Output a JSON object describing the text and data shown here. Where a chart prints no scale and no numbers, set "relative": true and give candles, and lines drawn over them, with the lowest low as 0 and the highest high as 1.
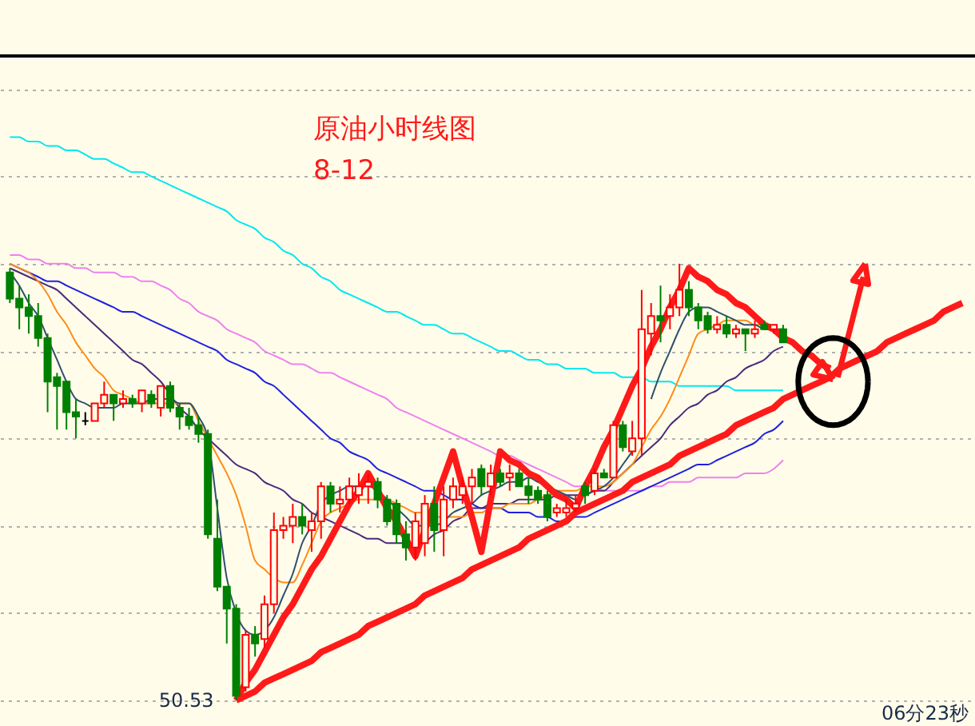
{
  "chart_data": {
    "type": "candlestick",
    "title": "原油小时线图",
    "subtitle": "8-12",
    "relative": true,
    "grid": true,
    "annotations": [
      "50.53",
      "06分23秒"
    ],
    "colors": [
      "#008000",
      "#008000",
      "#008000",
      "#008000",
      "#008000",
      "#008000",
      "#008000",
      "#008000",
      "#000000",
      "#ff0000",
      "#ff0000",
      "#008000",
      "#ff0000",
      "#008000",
      "#ff0000",
      "#008000",
      "#ff0000",
      "#008000",
      "#008000",
      "#008000",
      "#008000",
      "#008000",
      "#008000",
      "#008000",
      "#008000",
      "#ff0000",
      "#008000",
      "#ff0000",
      "#ff0000",
      "#ff0000",
      "#ff0000",
      "#008000",
      "#ff0000",
      "#ff0000",
      "#008000",
      "#ff0000",
      "#ff0000",
      "#ff0000",
      "#ff0000",
      "#008000",
      "#008000",
      "#008000",
      "#008000",
      "#ff0000",
      "#ff0000",
      "#008000",
      "#ff0000",
      "#ff0000",
      "#ff0000",
      "#ff0000",
      "#008000",
      "#ff0000",
      "#008000",
      "#ff0000",
      "#008000",
      "#008000",
      "#008000",
      "#008000",
      "#ff0000",
      "#ff0000",
      "#ff0000",
      "#008000",
      "#ff0000",
      "#008000",
      "#ff0000",
      "#008000",
      "#ff0000",
      "#ff0000",
      "#ff0000",
      "#008000",
      "#ff0000",
      "#ff0000",
      "#008000",
      "#008000",
      "#008000",
      "#ff0000",
      "#008000",
      "#ff0000",
      "#008000",
      "#ff0000",
      "#008000",
      "#ff0000",
      "#008000",
      null,
      null,
      null,
      null,
      null,
      null,
      null,
      null,
      null,
      null,
      null,
      null,
      null,
      null,
      null,
      null,
      null,
      null,
      null
    ],
    "categories": [
      null,
      null,
      null,
      null,
      null,
      null,
      null,
      null,
      null,
      null,
      null,
      null,
      null,
      null,
      null,
      null,
      null,
      null,
      null,
      null,
      null,
      null,
      null,
      null,
      null,
      null,
      null,
      null,
      null,
      null,
      null,
      null,
      null,
      null,
      null,
      null,
      null,
      null,
      null,
      null,
      null,
      null,
      null,
      null,
      null,
      null,
      null,
      null,
      null,
      null,
      null,
      null,
      null,
      null,
      null,
      null,
      null,
      null,
      null,
      null,
      null,
      null,
      null,
      null,
      null,
      null,
      null,
      null,
      null,
      null,
      null,
      null,
      null,
      null,
      null,
      null,
      null,
      null,
      null,
      null,
      null,
      null,
      null,
      null,
      null,
      null,
      null,
      null,
      null,
      null,
      null,
      null,
      null,
      null,
      null,
      null,
      null,
      null,
      null,
      null,
      null,
      null
    ],
    "ohlc": [
      [
        0.98,
        0.99,
        0.91,
        0.92
      ],
      [
        0.92,
        0.95,
        0.85,
        0.9
      ],
      [
        0.9,
        0.93,
        0.84,
        0.88
      ],
      [
        0.88,
        0.91,
        0.81,
        0.83
      ],
      [
        0.83,
        0.84,
        0.66,
        0.73
      ],
      [
        0.74,
        0.75,
        0.62,
        0.72
      ],
      [
        0.73,
        0.73,
        0.62,
        0.66
      ],
      [
        0.66,
        0.69,
        0.6,
        0.65
      ],
      [
        0.64,
        0.66,
        0.63,
        0.64
      ],
      [
        0.64,
        0.68,
        0.64,
        0.68
      ],
      [
        0.68,
        0.73,
        0.67,
        0.7
      ],
      [
        0.7,
        0.7,
        0.64,
        0.68
      ],
      [
        0.68,
        0.71,
        0.67,
        0.69
      ],
      [
        0.69,
        0.7,
        0.67,
        0.68
      ],
      [
        0.68,
        0.71,
        0.66,
        0.71
      ],
      [
        0.7,
        0.71,
        0.67,
        0.68
      ],
      [
        0.67,
        0.72,
        0.65,
        0.72
      ],
      [
        0.72,
        0.73,
        0.66,
        0.67
      ],
      [
        0.67,
        0.68,
        0.62,
        0.65
      ],
      [
        0.65,
        0.67,
        0.62,
        0.63
      ],
      [
        0.63,
        0.65,
        0.59,
        0.61
      ],
      [
        0.61,
        0.62,
        0.37,
        0.38
      ],
      [
        0.37,
        0.46,
        0.25,
        0.26
      ],
      [
        0.26,
        0.26,
        0.13,
        0.21
      ],
      [
        0.21,
        0.22,
        0,
        0.01
      ],
      [
        0.03,
        0.16,
        0.02,
        0.15
      ],
      [
        0.15,
        0.17,
        0.1,
        0.13
      ],
      [
        0.14,
        0.24,
        0.12,
        0.22
      ],
      [
        0.22,
        0.43,
        0.2,
        0.39
      ],
      [
        0.39,
        0.42,
        0.37,
        0.4
      ],
      [
        0.4,
        0.45,
        0.36,
        0.42
      ],
      [
        0.42,
        0.45,
        0.38,
        0.4
      ],
      [
        0.39,
        0.43,
        0.34,
        0.41
      ],
      [
        0.41,
        0.5,
        0.37,
        0.49
      ],
      [
        0.49,
        0.5,
        0.43,
        0.45
      ],
      [
        0.45,
        0.49,
        0.43,
        0.46
      ],
      [
        0.46,
        0.51,
        0.45,
        0.49
      ],
      [
        0.47,
        0.52,
        0.45,
        0.49
      ],
      [
        0.49,
        0.52,
        0.45,
        0.5
      ],
      [
        0.5,
        0.51,
        0.44,
        0.46
      ],
      [
        0.46,
        0.47,
        0.4,
        0.41
      ],
      [
        0.45,
        0.46,
        0.36,
        0.38
      ],
      [
        0.38,
        0.41,
        0.32,
        0.35
      ],
      [
        0.35,
        0.43,
        0.32,
        0.41
      ],
      [
        0.36,
        0.47,
        0.33,
        0.45
      ],
      [
        0.45,
        0.49,
        0.34,
        0.39
      ],
      [
        0.39,
        0.49,
        0.33,
        0.46
      ],
      [
        0.46,
        0.51,
        0.44,
        0.49
      ],
      [
        0.47,
        0.51,
        0.45,
        0.49
      ],
      [
        0.49,
        0.53,
        0.45,
        0.51
      ],
      [
        0.53,
        0.54,
        0.47,
        0.49
      ],
      [
        0.49,
        0.54,
        0.47,
        0.52
      ],
      [
        0.52,
        0.53,
        0.49,
        0.5
      ],
      [
        0.51,
        0.54,
        0.48,
        0.52
      ],
      [
        0.52,
        0.53,
        0.49,
        0.49
      ],
      [
        0.49,
        0.51,
        0.45,
        0.47
      ],
      [
        0.48,
        0.49,
        0.45,
        0.46
      ],
      [
        0.47,
        0.48,
        0.41,
        0.42
      ],
      [
        0.43,
        0.45,
        0.42,
        0.44
      ],
      [
        0.43,
        0.46,
        0.42,
        0.44
      ],
      [
        0.44,
        0.47,
        0.43,
        0.45
      ],
      [
        0.49,
        0.5,
        0.45,
        0.47
      ],
      [
        0.48,
        0.53,
        0.47,
        0.52
      ],
      [
        0.52,
        0.53,
        0.51,
        0.51
      ],
      [
        0.51,
        0.64,
        0.51,
        0.63
      ],
      [
        0.63,
        0.64,
        0.57,
        0.58
      ],
      [
        0.57,
        0.64,
        0.56,
        0.6
      ],
      [
        0.6,
        0.94,
        0.56,
        0.85
      ],
      [
        0.84,
        0.91,
        0.79,
        0.88
      ],
      [
        0.88,
        0.95,
        0.82,
        0.87
      ],
      [
        0.88,
        0.93,
        0.85,
        0.9
      ],
      [
        0.9,
        1.0,
        0.88,
        0.94
      ],
      [
        0.94,
        0.96,
        0.88,
        0.9
      ],
      [
        0.9,
        0.91,
        0.85,
        0.87
      ],
      [
        0.88,
        0.89,
        0.84,
        0.85
      ],
      [
        0.85,
        0.88,
        0.84,
        0.86
      ],
      [
        0.86,
        0.88,
        0.83,
        0.84
      ],
      [
        0.84,
        0.86,
        0.83,
        0.85
      ],
      [
        0.85,
        0.85,
        0.8,
        0.84
      ],
      [
        0.84,
        0.87,
        0.83,
        0.85
      ],
      [
        0.86,
        0.87,
        0.85,
        0.85
      ],
      [
        0.85,
        0.86,
        0.84,
        0.86
      ],
      [
        0.85,
        0.86,
        0.82,
        0.82
      ],
      null,
      null,
      null,
      null,
      null,
      null,
      null,
      null,
      null,
      null,
      null,
      null,
      null,
      null,
      null,
      null,
      null,
      null,
      null
    ],
    "series": [
      {
        "type": "line",
        "color": "#00e8f0",
        "values": [
          1.29,
          1.29,
          1.28,
          1.28,
          1.27,
          1.27,
          1.26,
          1.26,
          1.25,
          1.24,
          1.24,
          1.23,
          1.22,
          1.21,
          1.21,
          1.2,
          1.19,
          1.18,
          1.17,
          1.16,
          1.15,
          1.14,
          1.13,
          1.12,
          1.1,
          1.09,
          1.08,
          1.06,
          1.05,
          1.03,
          1.02,
          1.0,
          0.99,
          0.97,
          0.96,
          0.94,
          0.93,
          0.92,
          0.91,
          0.9,
          0.89,
          0.89,
          0.88,
          0.87,
          0.86,
          0.86,
          0.85,
          0.84,
          0.84,
          0.83,
          0.82,
          0.81,
          0.8,
          0.8,
          0.79,
          0.78,
          0.78,
          0.77,
          0.77,
          0.76,
          0.76,
          0.76,
          0.75,
          0.75,
          0.75,
          0.74,
          0.74,
          0.74,
          0.73,
          0.73,
          0.73,
          0.72,
          0.72,
          0.72,
          0.72,
          0.72,
          0.72,
          0.71,
          0.71,
          0.71,
          0.71,
          0.71,
          0.71,
          null,
          null,
          null,
          null,
          null,
          null,
          null,
          null,
          null,
          null,
          null,
          null,
          null,
          null,
          null,
          null,
          null,
          null,
          null
        ]
      },
      {
        "type": "line",
        "color": "#ee82ee",
        "values": [
          1.02,
          1.02,
          1.01,
          1.01,
          1.0,
          1.0,
          1.0,
          0.99,
          0.99,
          0.98,
          0.98,
          0.98,
          0.97,
          0.97,
          0.96,
          0.96,
          0.95,
          0.94,
          0.92,
          0.91,
          0.89,
          0.88,
          0.87,
          0.85,
          0.84,
          0.83,
          0.82,
          0.8,
          0.79,
          0.78,
          0.77,
          0.77,
          0.76,
          0.75,
          0.75,
          0.74,
          0.73,
          0.72,
          0.71,
          0.7,
          0.69,
          0.67,
          0.66,
          0.65,
          0.64,
          0.63,
          0.62,
          0.61,
          0.6,
          0.59,
          0.58,
          0.57,
          0.56,
          0.56,
          0.55,
          0.54,
          0.53,
          0.52,
          0.51,
          0.5,
          0.49,
          0.49,
          0.49,
          0.48,
          0.48,
          0.48,
          0.48,
          0.48,
          0.49,
          0.49,
          0.5,
          0.5,
          0.5,
          0.51,
          0.51,
          0.51,
          0.51,
          0.51,
          0.52,
          0.52,
          0.52,
          0.53,
          0.55,
          null,
          null,
          null,
          null,
          null,
          null,
          null,
          null,
          null,
          null,
          null,
          null,
          null,
          null,
          null,
          null,
          null,
          null,
          null
        ]
      },
      {
        "type": "line",
        "color": "#2020e0",
        "values": [
          1.0,
          0.99,
          0.98,
          0.97,
          0.96,
          0.96,
          0.95,
          0.94,
          0.93,
          0.92,
          0.91,
          0.9,
          0.89,
          0.89,
          0.88,
          0.87,
          0.86,
          0.85,
          0.84,
          0.83,
          0.82,
          0.81,
          0.8,
          0.78,
          0.77,
          0.76,
          0.75,
          0.73,
          0.72,
          0.7,
          0.68,
          0.66,
          0.64,
          0.62,
          0.6,
          0.59,
          0.57,
          0.56,
          0.55,
          0.53,
          0.52,
          0.51,
          0.5,
          0.49,
          0.48,
          0.48,
          0.47,
          0.46,
          0.46,
          0.45,
          0.44,
          0.44,
          0.44,
          0.43,
          0.43,
          0.43,
          0.42,
          0.42,
          0.41,
          0.41,
          0.42,
          0.42,
          0.43,
          0.44,
          0.45,
          0.46,
          0.47,
          0.48,
          0.49,
          0.5,
          0.51,
          0.52,
          0.53,
          0.54,
          0.54,
          0.55,
          0.56,
          0.57,
          0.58,
          0.59,
          0.61,
          0.62,
          0.64,
          null,
          null,
          null,
          null,
          null,
          null,
          null,
          null,
          null,
          null,
          null,
          null,
          null,
          null,
          null,
          null,
          null,
          null,
          null
        ]
      },
      {
        "type": "line",
        "color": "#4b2a7a",
        "values": [
          0.99,
          0.98,
          0.97,
          0.96,
          0.95,
          0.94,
          0.92,
          0.9,
          0.88,
          0.86,
          0.84,
          0.82,
          0.8,
          0.78,
          0.77,
          0.75,
          0.73,
          0.7,
          0.67,
          0.65,
          0.62,
          0.6,
          0.58,
          0.56,
          0.54,
          0.53,
          0.52,
          0.5,
          0.49,
          0.48,
          0.46,
          0.45,
          0.43,
          0.42,
          0.41,
          0.4,
          0.39,
          0.38,
          0.37,
          0.37,
          0.36,
          0.36,
          0.36,
          null,
          0.36,
          0.38,
          0.39,
          0.41,
          0.42,
          0.44,
          0.44,
          0.45,
          0.45,
          0.45,
          0.46,
          0.46,
          0.46,
          0.46,
          0.47,
          0.47,
          0.47,
          0.47,
          0.48,
          0.48,
          0.5,
          0.52,
          0.54,
          0.56,
          0.58,
          0.6,
          0.63,
          0.65,
          0.67,
          0.68,
          0.7,
          0.71,
          0.73,
          0.74,
          0.76,
          0.77,
          0.78,
          0.8,
          0.81,
          null,
          null,
          null,
          null,
          null,
          null,
          null,
          null,
          null,
          null,
          null,
          null,
          null,
          null,
          null,
          null,
          null,
          null,
          null
        ]
      },
      {
        "type": "line",
        "color": "#ff8c1a",
        "values": [
          1.0,
          0.99,
          0.98,
          0.96,
          0.93,
          0.89,
          0.86,
          0.82,
          0.79,
          0.76,
          0.74,
          0.71,
          0.7,
          0.69,
          0.68,
          0.68,
          0.68,
          0.68,
          0.68,
          0.68,
          0.64,
          0.6,
          0.56,
          0.52,
          0.47,
          0.4,
          0.32,
          0.3,
          0.28,
          0.27,
          0.27,
          0.31,
          0.36,
          0.41,
          0.43,
          0.44,
          0.45,
          0.46,
          0.46,
          0.46,
          0.46,
          0.45,
          0.44,
          0.43,
          0.43,
          0.42,
          0.42,
          0.42,
          0.42,
          0.43,
          0.43,
          0.44,
          0.44,
          0.45,
          0.45,
          0.45,
          0.46,
          0.47,
          0.48,
          0.48,
          0.48,
          0.49,
          0.49,
          0.49,
          0.5,
          0.52,
          0.54,
          0.58,
          0.62,
          0.65,
          0.69,
          0.74,
          0.79,
          0.84,
          0.85,
          0.86,
          0.87,
          0.87,
          0.87,
          0.86,
          0.86,
          null,
          null,
          null,
          null,
          null,
          null,
          null,
          null,
          null,
          null,
          null,
          null,
          null,
          null,
          null,
          null,
          null,
          null,
          null,
          null,
          null
        ]
      },
      {
        "type": "line",
        "color": "#2f4f6f",
        "values": [
          0.98,
          0.95,
          0.91,
          0.88,
          0.83,
          0.78,
          0.73,
          0.69,
          0.68,
          0.67,
          0.67,
          0.67,
          0.68,
          0.68,
          0.68,
          0.69,
          0.69,
          0.69,
          0.68,
          0.68,
          0.65,
          0.6,
          0.44,
          0.28,
          0.2,
          0.16,
          0.15,
          0.16,
          0.19,
          0.24,
          0.29,
          0.36,
          0.4,
          0.45,
          0.47,
          0.48,
          0.49,
          0.49,
          0.49,
          0.48,
          0.46,
          0.44,
          0.42,
          0.4,
          0.4,
          0.4,
          0.41,
          0.43,
          0.44,
          0.45,
          0.47,
          0.48,
          0.49,
          0.5,
          0.5,
          0.51,
          0.5,
          0.49,
          0.48,
          0.47,
          0.46,
          0.47,
          0.48,
          0.49,
          0.51,
          0.54,
          0.57,
          null,
          0.69,
          0.75,
          0.8,
          0.85,
          0.89,
          0.9,
          0.9,
          0.89,
          0.88,
          0.87,
          0.86,
          0.86,
          0.85,
          0.85,
          0.85,
          null,
          null,
          null,
          null,
          null,
          null,
          null,
          null,
          null,
          null,
          null,
          null,
          null,
          null,
          null,
          null,
          null,
          null,
          null
        ]
      },
      {
        "type": "line",
        "color": "#ff1a1a",
        "line_style": "solid",
        "values": [
          null,
          null,
          null,
          null,
          null,
          null,
          null,
          null,
          null,
          null,
          null,
          null,
          null,
          null,
          null,
          null,
          null,
          null,
          null,
          null,
          null,
          null,
          null,
          null,
          0,
          0.04,
          0.07,
          0.11,
          0.15,
          0.19,
          0.22,
          0.26,
          0.3,
          0.33,
          0.37,
          0.41,
          0.45,
          0.48,
          0.52,
          0.48,
          0.44,
          0.41,
          0.37,
          0.33,
          0.39,
          0.45,
          0.51,
          0.57,
          0.49,
          0.42,
          0.34,
          0.46,
          0.57,
          0.55,
          0.54,
          0.52,
          0.51,
          0.49,
          0.47,
          0.46,
          0.44,
          0.49,
          0.53,
          0.58,
          0.62,
          0.67,
          0.72,
          0.76,
          0.81,
          0.85,
          0.9,
          0.94,
          0.99,
          0.97,
          0.96,
          0.94,
          0.93,
          0.91,
          0.9,
          0.88,
          0.86,
          0.85,
          0.83,
          0.82,
          0.8,
          0.79,
          0.77,
          0.76,
          null,
          null,
          null,
          null,
          null,
          null,
          null,
          null,
          null,
          null,
          null,
          null,
          null,
          null
        ]
      },
      {
        "type": "line",
        "color": "#ff1a1a",
        "line_style": "solid",
        "values": [
          null,
          null,
          null,
          null,
          null,
          null,
          null,
          null,
          null,
          null,
          null,
          null,
          null,
          null,
          null,
          null,
          null,
          null,
          null,
          null,
          null,
          null,
          null,
          null,
          0,
          0.01,
          0.02,
          0.04,
          0.05,
          0.06,
          0.07,
          0.08,
          0.09,
          0.11,
          0.12,
          0.13,
          0.14,
          0.15,
          0.17,
          0.18,
          0.19,
          0.2,
          0.21,
          0.22,
          0.24,
          0.25,
          0.26,
          0.27,
          0.28,
          0.3,
          0.31,
          0.32,
          0.33,
          0.34,
          0.35,
          0.37,
          0.38,
          0.39,
          0.4,
          0.41,
          0.43,
          0.44,
          0.45,
          0.46,
          0.47,
          0.48,
          0.5,
          0.51,
          0.52,
          0.53,
          0.54,
          0.56,
          0.57,
          0.58,
          0.59,
          0.6,
          0.61,
          0.63,
          0.64,
          0.65,
          0.66,
          0.67,
          0.69,
          0.7,
          0.71,
          0.72,
          0.73,
          0.74,
          0.76,
          0.77,
          0.78,
          0.79,
          0.8,
          0.82,
          0.83,
          0.84,
          0.85,
          0.86,
          0.87,
          0.89,
          0.9,
          0.91
        ]
      }
    ]
  }
}
